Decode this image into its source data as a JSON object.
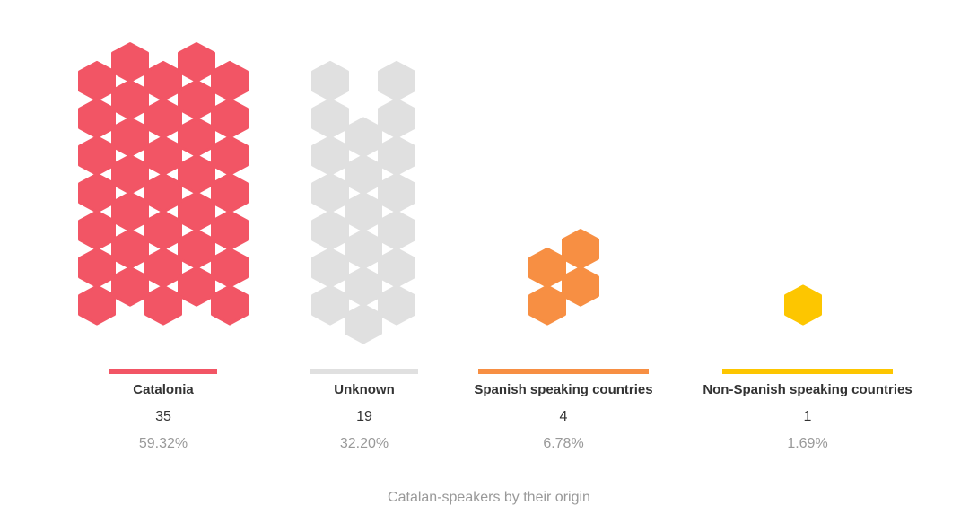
{
  "chart_data": {
    "type": "hexagon-pictogram",
    "caption": "Catalan-speakers by their origin",
    "categories": [
      {
        "name": "Catalonia",
        "count": "35",
        "percent": "59.32%",
        "value": 35,
        "color": "#f25565"
      },
      {
        "name": "Unknown",
        "count": "19",
        "percent": "32.20%",
        "value": 19,
        "color": "#e0e0e0"
      },
      {
        "name": "Spanish speaking countries",
        "count": "4",
        "percent": "6.78%",
        "value": 4,
        "color": "#f78f43"
      },
      {
        "name": "Non-Spanish speaking countries",
        "count": "1",
        "percent": "1.69%",
        "value": 1,
        "color": "#fdc600"
      }
    ]
  }
}
